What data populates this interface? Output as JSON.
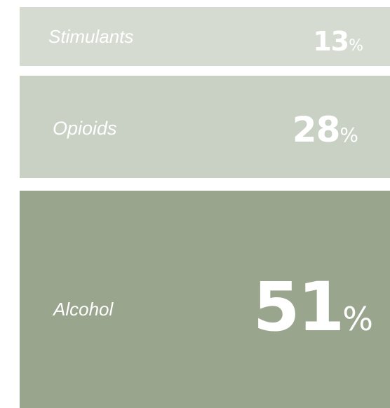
{
  "chart_data": {
    "type": "bar",
    "title": "",
    "categories": [
      "Stimulants",
      "Opioids",
      "Alcohol"
    ],
    "values": [
      13,
      28,
      51
    ],
    "unit": "%",
    "colors": [
      "#d5dbd1",
      "#c9d1c5",
      "#9aa58e"
    ],
    "label_color": "#ffffff"
  }
}
